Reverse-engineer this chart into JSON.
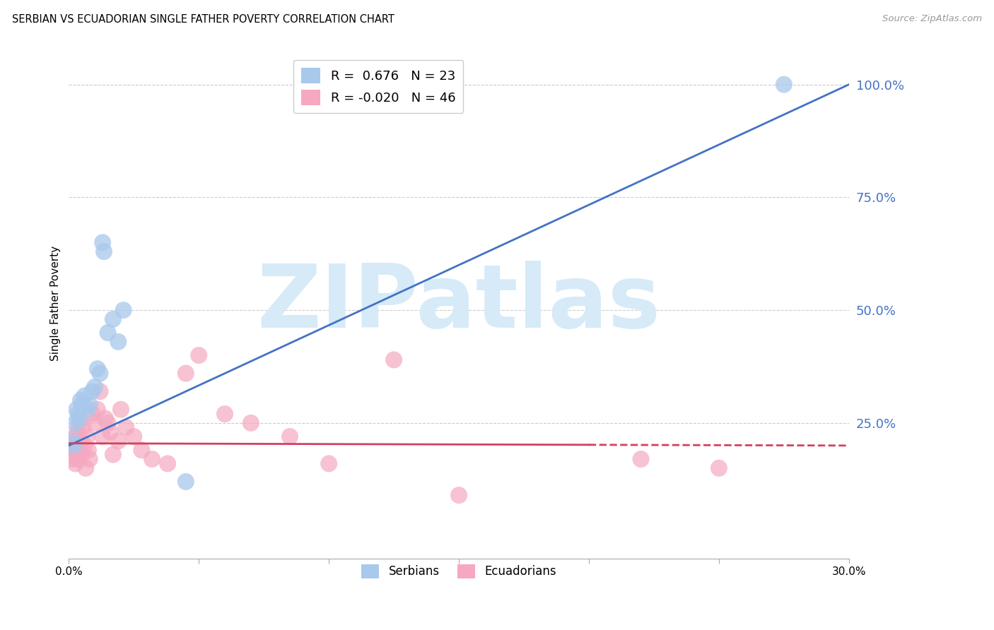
{
  "title": "SERBIAN VS ECUADORIAN SINGLE FATHER POVERTY CORRELATION CHART",
  "source": "Source: ZipAtlas.com",
  "ylabel": "Single Father Poverty",
  "xlim": [
    0.0,
    30.0
  ],
  "ylim": [
    -5.0,
    108.0
  ],
  "yticks": [
    25.0,
    50.0,
    75.0,
    100.0
  ],
  "ytick_labels": [
    "25.0%",
    "50.0%",
    "75.0%",
    "100.0%"
  ],
  "xticks": [
    0.0,
    5.0,
    10.0,
    15.0,
    20.0,
    25.0,
    30.0
  ],
  "xtick_labels": [
    "0.0%",
    "",
    "",
    "",
    "",
    "",
    "30.0%"
  ],
  "serbian_color": "#A8C8EC",
  "ecuadorian_color": "#F5A8C0",
  "serbian_line_color": "#4472C4",
  "ecuadorian_line_color": "#D44060",
  "legend_serbian_R": "0.676",
  "legend_serbian_N": "23",
  "legend_ecuadorian_R": "-0.020",
  "legend_ecuadorian_N": "46",
  "watermark": "ZIPatlas",
  "watermark_color": "#D6EAF8",
  "serbian_line_x0": 0.0,
  "serbian_line_y0": 20.0,
  "serbian_line_x1": 30.0,
  "serbian_line_y1": 100.0,
  "ecuadorian_line_x0": 0.0,
  "ecuadorian_line_y0": 20.5,
  "ecuadorian_line_x1": 30.0,
  "ecuadorian_line_y1": 20.0,
  "ecuadorian_line_solid_end": 20.0,
  "serbian_x": [
    0.15,
    0.2,
    0.25,
    0.3,
    0.35,
    0.4,
    0.45,
    0.5,
    0.6,
    0.7,
    0.8,
    0.9,
    1.0,
    1.1,
    1.2,
    1.3,
    1.35,
    1.5,
    1.7,
    1.9,
    2.1,
    4.5,
    27.5
  ],
  "serbian_y": [
    21,
    20,
    25,
    28,
    27,
    26,
    30,
    29,
    31,
    28,
    29,
    32,
    33,
    37,
    36,
    65,
    63,
    45,
    48,
    43,
    50,
    12,
    100
  ],
  "ecuadorian_x": [
    0.1,
    0.12,
    0.15,
    0.18,
    0.2,
    0.22,
    0.25,
    0.28,
    0.3,
    0.32,
    0.35,
    0.4,
    0.45,
    0.5,
    0.55,
    0.6,
    0.65,
    0.7,
    0.75,
    0.8,
    0.9,
    1.0,
    1.1,
    1.2,
    1.3,
    1.4,
    1.5,
    1.6,
    1.7,
    1.9,
    2.0,
    2.2,
    2.5,
    2.8,
    3.2,
    3.8,
    4.5,
    5.0,
    6.0,
    7.0,
    8.5,
    10.0,
    12.5,
    15.0,
    22.0,
    25.0
  ],
  "ecuadorian_y": [
    20,
    17,
    19,
    21,
    18,
    20,
    16,
    22,
    19,
    23,
    17,
    25,
    21,
    18,
    24,
    20,
    15,
    22,
    19,
    17,
    27,
    25,
    28,
    32,
    22,
    26,
    25,
    23,
    18,
    21,
    28,
    24,
    22,
    19,
    17,
    16,
    36,
    40,
    27,
    25,
    22,
    16,
    39,
    9,
    17,
    15
  ]
}
